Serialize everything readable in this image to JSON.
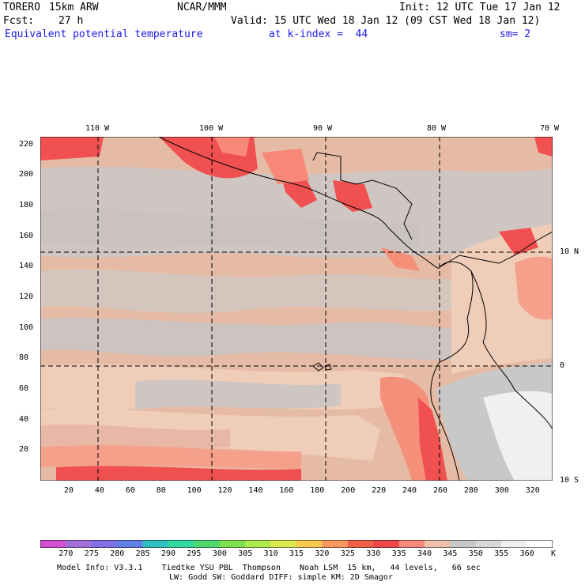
{
  "header": {
    "model": "TORERO",
    "resolution": "15km ARW",
    "org": "NCAR/MMM",
    "init": "Init: 12 UTC Tue 17 Jan 12",
    "fcst_label": "Fcst:",
    "fcst_value": "27 h",
    "valid": "Valid: 15 UTC Wed 18 Jan 12 (09 CST Wed 18 Jan 12)",
    "field": "Equivalent potential temperature",
    "level": "at k-index =  44",
    "smoothing": "sm= 2"
  },
  "map": {
    "top_lon_labels": [
      "110 W",
      "100 W",
      "90 W",
      "80 W",
      "70 W"
    ],
    "right_lat_labels": [
      "10 N",
      "0",
      "10 S"
    ],
    "left_y_ticks": [
      "220",
      "200",
      "180",
      "160",
      "140",
      "120",
      "100",
      "80",
      "60",
      "40",
      "20"
    ],
    "bottom_x_ticks": [
      "20",
      "40",
      "60",
      "80",
      "100",
      "120",
      "140",
      "160",
      "180",
      "200",
      "220",
      "240",
      "260",
      "280",
      "300",
      "320"
    ],
    "x_range": [
      0,
      333
    ],
    "y_range": [
      0,
      225
    ],
    "gridlines": {
      "style": "dashed",
      "lon_deg": [
        -110,
        -100,
        -90,
        -80
      ],
      "lat_deg": [
        10,
        0
      ]
    },
    "colors": {
      "land_outline": "#000000",
      "bg_330_335": "#e0b8a4",
      "bg_340_345": "#f0cdb8",
      "gray_345": "#cfc6c3",
      "gray_350": "#c8c8c8",
      "red_330": "#f05050",
      "salmon_335": "#f88060",
      "light_360": "#f0f0f0"
    }
  },
  "colorbar": {
    "labels": [
      "270",
      "275",
      "280",
      "285",
      "290",
      "295",
      "300",
      "305",
      "310",
      "315",
      "320",
      "325",
      "330",
      "335",
      "340",
      "345",
      "350",
      "355",
      "360"
    ],
    "unit": "K",
    "colors": [
      "#d050d0",
      "#a070d8",
      "#8070e8",
      "#6080e8",
      "#30c0c0",
      "#30d8a0",
      "#50d870",
      "#80e050",
      "#b0e850",
      "#e0e850",
      "#f8c850",
      "#f89860",
      "#f06048",
      "#f04848",
      "#f88878",
      "#f0c0a8",
      "#c8c8c8",
      "#d8d8d8",
      "#f0f0f0",
      "#ffffff"
    ]
  },
  "footer": {
    "line1": "Model Info: V3.3.1    Tiedtke YSU PBL  Thompson    Noah LSM  15 km,   44 levels,   66 sec",
    "line2": "LW: Godd SW: Goddard DIFF: simple KM: 2D Smagor"
  }
}
